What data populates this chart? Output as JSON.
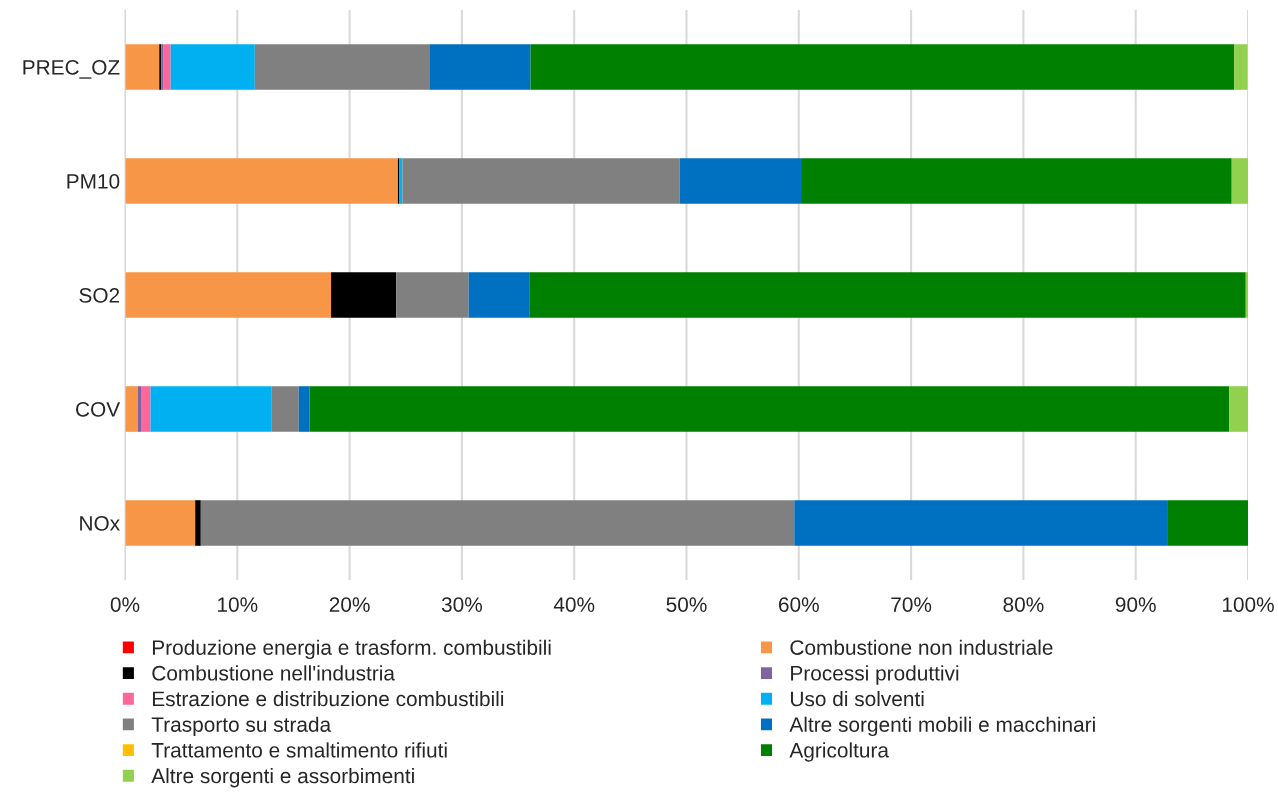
{
  "chart_data": {
    "type": "bar",
    "orientation": "horizontal",
    "stacked": true,
    "categories": [
      "PREC_OZ",
      "PM10",
      "SO2",
      "COV",
      "NOx"
    ],
    "series": [
      {
        "name": "Produzione energia e trasform. combustibili",
        "color": "#ff0000",
        "values": [
          0,
          0,
          0,
          0,
          0
        ]
      },
      {
        "name": "Combustione non industriale",
        "color": "#f79646",
        "values": [
          3.05,
          24.3,
          18.35,
          1.13,
          6.25
        ]
      },
      {
        "name": "Combustione nell'industria",
        "color": "#000000",
        "values": [
          0.18,
          0.1,
          5.8,
          0,
          0.5
        ]
      },
      {
        "name": "Processi produttivi",
        "color": "#8064a2",
        "values": [
          0.21,
          0,
          0,
          0.36,
          0
        ]
      },
      {
        "name": "Estrazione e distribuzione combustibili",
        "color": "#ff6699",
        "values": [
          0.62,
          0,
          0,
          0.78,
          0
        ]
      },
      {
        "name": "Uso di solventi",
        "color": "#00b0f0",
        "values": [
          7.5,
          0.3,
          0,
          10.8,
          0
        ]
      },
      {
        "name": "Trasporto su strada",
        "color": "#808080",
        "values": [
          15.6,
          24.7,
          6.45,
          2.4,
          52.85
        ]
      },
      {
        "name": "Altre sorgenti mobili e macchinari",
        "color": "#0070c0",
        "values": [
          8.95,
          10.8,
          5.45,
          0.95,
          33.2
        ]
      },
      {
        "name": "Trattamento e smaltimento rifiuti",
        "color": "#ffc000",
        "values": [
          0,
          0,
          0,
          0,
          0
        ]
      },
      {
        "name": "Agricoltura",
        "color": "#008000",
        "values": [
          62.65,
          38.35,
          63.75,
          81.9,
          7.2
        ]
      },
      {
        "name": "Altre sorgenti e assorbimenti",
        "color": "#92d050",
        "values": [
          1.2,
          1.45,
          0.2,
          1.7,
          0
        ]
      }
    ],
    "xlim": [
      0,
      100
    ],
    "xticks": [
      {
        "value": 0,
        "label": "0%"
      },
      {
        "value": 10,
        "label": "10%"
      },
      {
        "value": 20,
        "label": "20%"
      },
      {
        "value": 30,
        "label": "30%"
      },
      {
        "value": 40,
        "label": "40%"
      },
      {
        "value": 50,
        "label": "50%"
      },
      {
        "value": 60,
        "label": "60%"
      },
      {
        "value": 70,
        "label": "70%"
      },
      {
        "value": 80,
        "label": "80%"
      },
      {
        "value": 90,
        "label": "90%"
      },
      {
        "value": 100,
        "label": "100%"
      }
    ],
    "grid": "x",
    "legend": "bottom"
  }
}
